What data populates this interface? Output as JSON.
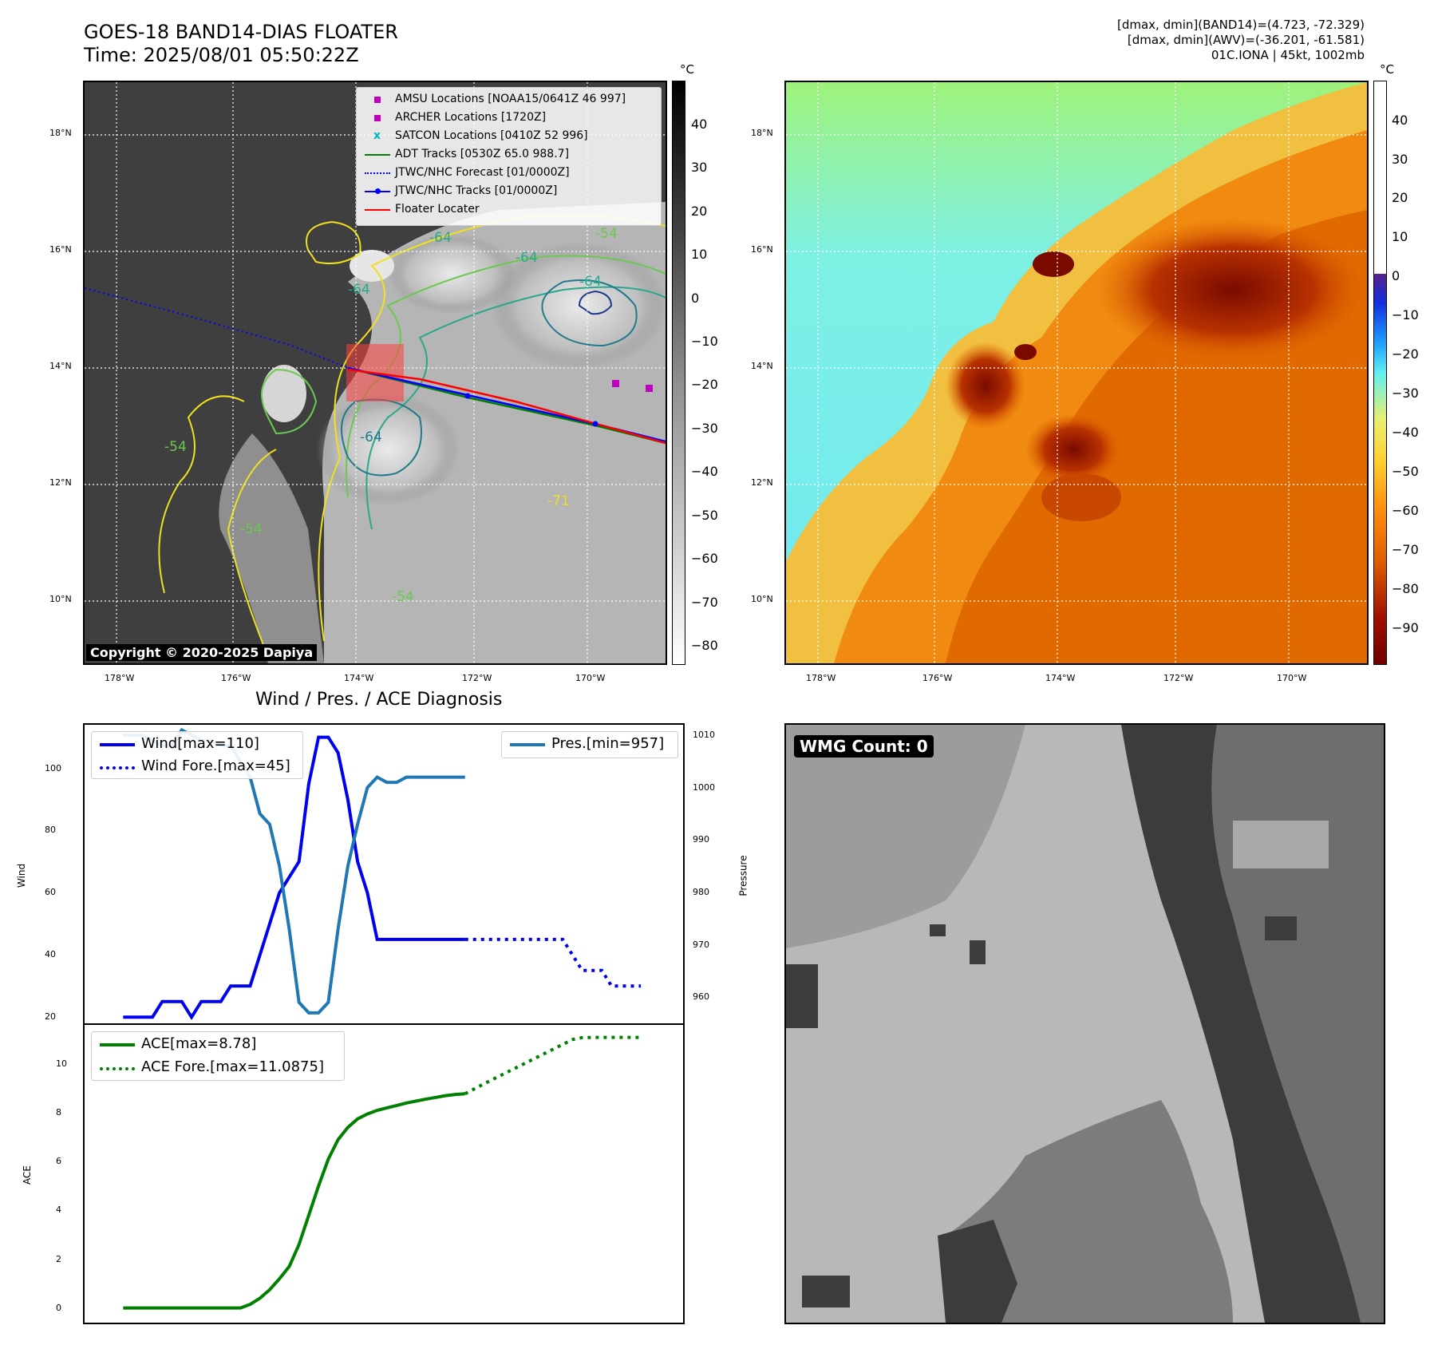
{
  "header": {
    "title_line1": "GOES-18 BAND14-DIAS FLOATER",
    "title_line2": "Time: 2025/08/01 05:50:22Z",
    "info_line1": "[dmax, dmin](BAND14)=(4.723, -72.329)",
    "info_line2": "[dmax, dmin](AWV)=(-36.201, -61.581)",
    "info_line3": "01C.IONA | 45kt, 1002mb"
  },
  "map": {
    "lat_ticks": [
      "18°N",
      "16°N",
      "14°N",
      "12°N",
      "10°N"
    ],
    "lon_ticks": [
      "178°W",
      "176°W",
      "174°W",
      "172°W",
      "170°W"
    ],
    "copyright": "Copyright © 2020-2025 Dapiya",
    "contour_labels": [
      "-64",
      "-64",
      "-64",
      "-64",
      "-54",
      "-54",
      "-54",
      "-64",
      "-54",
      "-71"
    ],
    "legend": [
      {
        "label": "AMSU Locations [NOAA15/0641Z 46 997]",
        "color": "#c000c0"
      },
      {
        "label": "ARCHER Locations [1720Z]",
        "color": "#c000c0"
      },
      {
        "label": "SATCON Locations [0410Z 52 996]",
        "color": "#00b8c0"
      },
      {
        "label": "ADT Tracks [0530Z 65.0 988.7]",
        "color": "#008000"
      },
      {
        "label": "JTWC/NHC Forecast [01/0000Z]",
        "color": "#0000ff"
      },
      {
        "label": "JTWC/NHC Tracks [01/0000Z]",
        "color": "#0000ff"
      },
      {
        "label": "Floater Locater",
        "color": "#ff0000"
      }
    ]
  },
  "colorbar_left": {
    "unit": "°C",
    "ticks": [
      "40",
      "30",
      "20",
      "10",
      "0",
      "−10",
      "−20",
      "−30",
      "−40",
      "−50",
      "−60",
      "−70",
      "−80"
    ]
  },
  "colorbar_right": {
    "unit": "°C",
    "ticks": [
      "40",
      "30",
      "20",
      "10",
      "0",
      "−10",
      "−20",
      "−30",
      "−40",
      "−50",
      "−60",
      "−70",
      "−80",
      "−90"
    ]
  },
  "wmg": {
    "badge": "WMG Count: 0"
  },
  "chart_data": [
    {
      "type": "line",
      "title": "Wind / Pres. / ACE Diagnosis",
      "ylabel": "Wind",
      "ylabel_right": "Pressure",
      "ylim": [
        18,
        114
      ],
      "ylim_right": [
        955,
        1012
      ],
      "y_ticks": [
        "100",
        "80",
        "60",
        "40",
        "20"
      ],
      "y_ticks_right": [
        "1010",
        "1000",
        "990",
        "980",
        "970",
        "960"
      ],
      "legend_left": [
        "Wind[max=110]",
        "Wind Fore.[max=45]"
      ],
      "legend_right": [
        "Pres.[min=957]"
      ],
      "series": [
        {
          "name": "Wind[max=110]",
          "color": "#0000ee",
          "style": "solid",
          "x": [
            0,
            1,
            2,
            3,
            4,
            5,
            6,
            7,
            8,
            9,
            10,
            11,
            12,
            13,
            14,
            15,
            16,
            17,
            18,
            19,
            20,
            21,
            22,
            23,
            24,
            25,
            26,
            27,
            28,
            29,
            30,
            31,
            32,
            33,
            34,
            35
          ],
          "values": [
            20,
            20,
            20,
            20,
            25,
            25,
            25,
            20,
            25,
            25,
            25,
            30,
            30,
            30,
            40,
            50,
            60,
            65,
            70,
            95,
            110,
            110,
            105,
            90,
            70,
            60,
            45,
            45,
            45,
            45,
            45,
            45,
            45,
            45,
            45,
            45
          ]
        },
        {
          "name": "Wind Fore.[max=45]",
          "color": "#0000ee",
          "style": "dotted",
          "x": [
            35,
            37,
            39,
            41,
            43,
            45,
            46,
            47,
            48,
            49,
            50,
            51,
            52,
            53
          ],
          "values": [
            45,
            45,
            45,
            45,
            45,
            45,
            40,
            35,
            35,
            35,
            30,
            30,
            30,
            30
          ]
        },
        {
          "name": "Pres.[min=957]",
          "color": "#1f77b4",
          "style": "solid",
          "axis": "right",
          "x": [
            0,
            1,
            2,
            3,
            4,
            5,
            6,
            7,
            8,
            9,
            10,
            11,
            12,
            13,
            14,
            15,
            16,
            17,
            18,
            19,
            20,
            21,
            22,
            23,
            24,
            25,
            26,
            27,
            28,
            29,
            30,
            31,
            32,
            33,
            34,
            35
          ],
          "values": [
            1010,
            1010,
            1010,
            1009,
            1008,
            1008,
            1011,
            1010,
            1009,
            1009,
            1008,
            1008,
            1005,
            1002,
            995,
            993,
            985,
            973,
            959,
            957,
            957,
            959,
            973,
            985,
            993,
            1000,
            1002,
            1001,
            1001,
            1002,
            1002,
            1002,
            1002,
            1002,
            1002,
            1002
          ]
        }
      ]
    },
    {
      "type": "line",
      "ylabel": "ACE",
      "ylim": [
        -0.6,
        11.6
      ],
      "y_ticks": [
        "10",
        "8",
        "6",
        "4",
        "2",
        "0"
      ],
      "legend": [
        "ACE[max=8.78]",
        "ACE Fore.[max=11.0875]"
      ],
      "series": [
        {
          "name": "ACE[max=8.78]",
          "color": "#008000",
          "style": "solid",
          "x": [
            0,
            12,
            13,
            14,
            15,
            16,
            17,
            18,
            19,
            20,
            21,
            22,
            23,
            24,
            25,
            26,
            27,
            28,
            29,
            30,
            31,
            32,
            33,
            34,
            35
          ],
          "values": [
            0,
            0,
            0.15,
            0.4,
            0.75,
            1.2,
            1.7,
            2.6,
            3.8,
            5,
            6.1,
            6.9,
            7.4,
            7.75,
            7.95,
            8.1,
            8.2,
            8.3,
            8.4,
            8.48,
            8.56,
            8.63,
            8.7,
            8.75,
            8.78
          ]
        },
        {
          "name": "ACE Fore.[max=11.0875]",
          "color": "#008000",
          "style": "dotted",
          "x": [
            35,
            37,
            39,
            41,
            43,
            45,
            46,
            47,
            48,
            49,
            50,
            51,
            52,
            53
          ],
          "values": [
            8.78,
            9.2,
            9.6,
            10,
            10.4,
            10.8,
            11.0,
            11.08,
            11.0875,
            11.0875,
            11.0875,
            11.0875,
            11.0875,
            11.0875
          ]
        }
      ]
    }
  ]
}
